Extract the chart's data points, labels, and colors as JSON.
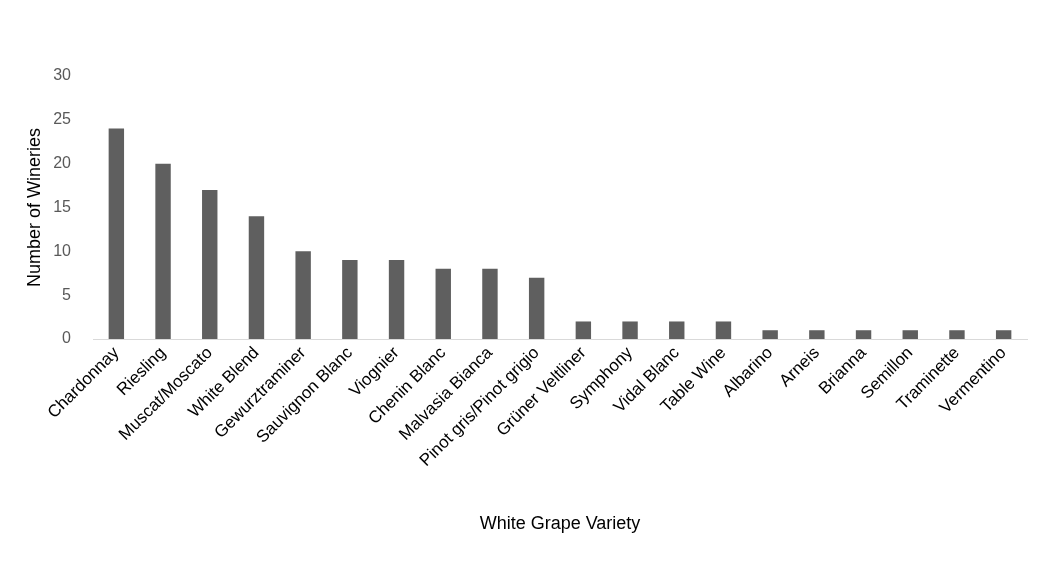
{
  "chart_data": {
    "type": "bar",
    "xlabel": "White Grape Variety",
    "ylabel": "Number of Wineries",
    "categories": [
      "Chardonnay",
      "Riesling",
      "Muscat/Moscato",
      "White Blend",
      "Gewurztraminer",
      "Sauvignon Blanc",
      "Viognier",
      "Chenin Blanc",
      "Malvasia Bianca",
      "Pinot gris/Pinot grigio",
      "Grüner Veltliner",
      "Symphony",
      "Vidal Blanc",
      "Table Wine",
      "Albarino",
      "Arneis",
      "Brianna",
      "Semillon",
      "Traminette",
      "Vermentino"
    ],
    "values": [
      24,
      20,
      17,
      14,
      10,
      9,
      9,
      8,
      8,
      7,
      2,
      2,
      2,
      2,
      1,
      1,
      1,
      1,
      1,
      1
    ],
    "color": "#5f5f5f",
    "ylim": [
      0,
      30
    ],
    "yticks": [
      0,
      5,
      10,
      15,
      20,
      25,
      30
    ]
  }
}
